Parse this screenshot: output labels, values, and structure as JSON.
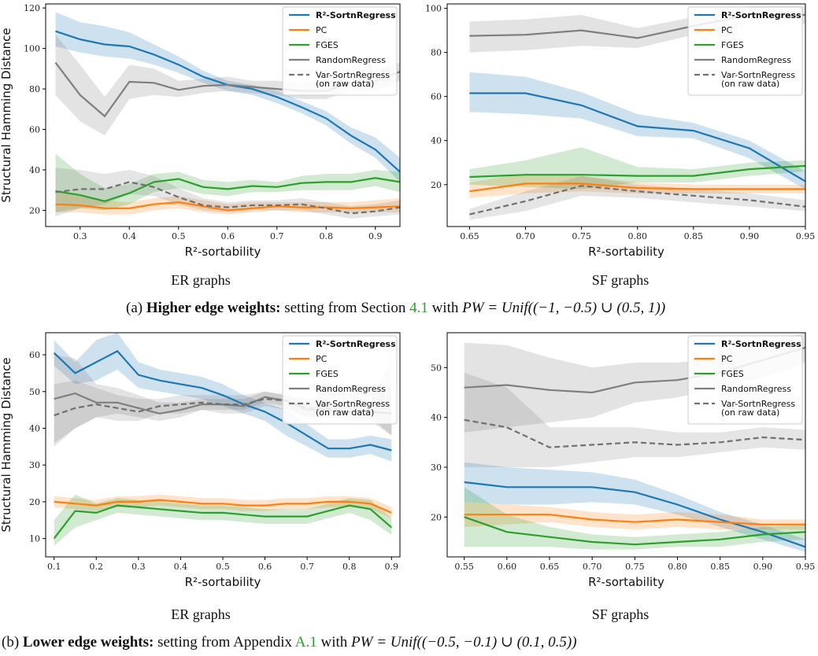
{
  "chart_data": [
    {
      "type": "line",
      "ylabel": "Structural Hamming Distance",
      "xlabel": "R²-sortability",
      "xlim": [
        0.23,
        0.95
      ],
      "ylim": [
        12,
        122
      ],
      "xticks": [
        "0.3",
        "0.4",
        "0.5",
        "0.6",
        "0.7",
        "0.8",
        "0.9"
      ],
      "yticks": [
        "20",
        "40",
        "60",
        "80",
        "100",
        "120"
      ],
      "legend": "top-right",
      "x": [
        0.25,
        0.3,
        0.35,
        0.4,
        0.45,
        0.5,
        0.55,
        0.6,
        0.65,
        0.7,
        0.75,
        0.8,
        0.85,
        0.9,
        0.95
      ],
      "series": [
        {
          "name": "R²-SortnRegress",
          "color": "#1f77b4",
          "values": [
            108.5,
            104.5,
            102,
            101,
            97,
            92,
            86,
            82,
            80,
            76,
            71,
            65.5,
            57,
            50,
            39
          ],
          "lower": [
            101,
            98,
            96,
            95,
            92,
            88,
            83,
            79,
            77,
            73,
            68,
            62,
            53,
            46,
            34
          ],
          "upper": [
            118,
            113,
            111,
            108,
            102,
            96,
            89,
            84,
            82,
            79,
            74,
            69,
            61,
            56,
            46
          ]
        },
        {
          "name": "PC",
          "color": "#ff7f0e",
          "values": [
            23,
            22.5,
            21,
            21,
            23,
            24,
            22,
            20,
            21,
            22,
            21.5,
            21.5,
            21,
            21.5,
            22
          ],
          "lower": [
            19,
            19,
            18,
            18,
            20,
            21,
            19,
            18,
            19,
            20,
            19,
            19,
            19,
            19,
            19
          ],
          "upper": [
            29,
            27,
            25,
            24,
            26,
            27,
            25,
            23,
            24,
            24,
            24,
            24,
            24,
            25,
            26
          ]
        },
        {
          "name": "FGES",
          "color": "#2ca02c",
          "values": [
            29.5,
            27.5,
            24.5,
            28.5,
            34,
            35.5,
            31.5,
            30.5,
            32,
            31.5,
            33.5,
            34,
            34,
            36,
            34
          ],
          "lower": [
            19,
            21,
            20,
            23,
            29,
            31,
            28,
            27,
            29,
            29,
            30,
            30,
            30,
            32,
            29
          ],
          "upper": [
            48,
            38,
            31,
            33,
            38,
            39,
            35,
            34,
            35,
            34,
            37,
            38,
            38,
            40,
            39
          ]
        },
        {
          "name": "RandomRegress",
          "color": "#7f7f7f",
          "values": [
            93,
            77,
            66.5,
            83.5,
            83,
            79.5,
            81.5,
            82,
            81,
            80,
            79,
            79,
            83,
            84,
            88.5
          ],
          "lower": [
            77,
            64,
            57,
            75,
            77,
            76,
            78,
            79,
            78,
            77,
            75,
            75,
            79,
            79,
            84
          ],
          "upper": [
            107,
            92,
            76,
            92,
            90,
            84,
            85,
            86,
            84,
            84,
            83,
            84,
            87,
            89,
            93
          ]
        },
        {
          "name": "Var-SortnRegress",
          "name2": "(on raw data)",
          "color": "#707070",
          "dashed": true,
          "values": [
            29,
            30.5,
            30.5,
            34,
            31.5,
            26.5,
            22.5,
            21.5,
            22.5,
            22.5,
            23,
            21,
            18.5,
            19.5,
            21.5
          ],
          "lower": [
            17,
            21,
            23,
            28,
            27,
            23,
            20,
            19,
            20,
            20,
            20,
            18,
            16,
            17,
            18
          ],
          "upper": [
            41,
            40,
            38,
            40,
            37,
            31,
            26,
            24,
            25,
            25,
            26,
            24,
            22,
            23,
            25
          ]
        }
      ],
      "subtitle": "ER graphs"
    },
    {
      "type": "line",
      "ylabel": "Structural Hamming Distance",
      "xlabel": "R²-sortability",
      "xlim": [
        0.63,
        0.95
      ],
      "ylim": [
        1,
        102
      ],
      "xticks": [
        "0.65",
        "0.70",
        "0.75",
        "0.80",
        "0.85",
        "0.90",
        "0.95"
      ],
      "yticks": [
        "20",
        "40",
        "60",
        "80",
        "100"
      ],
      "legend": "top-right",
      "x": [
        0.65,
        0.7,
        0.75,
        0.8,
        0.85,
        0.9,
        0.95
      ],
      "series": [
        {
          "name": "R²-SortnRegress",
          "color": "#1f77b4",
          "values": [
            61.5,
            61.5,
            56,
            46.5,
            44.5,
            36.5,
            21.5
          ],
          "lower": [
            53,
            52,
            50,
            42,
            41,
            32,
            18
          ],
          "upper": [
            71,
            69,
            62,
            52,
            48,
            40,
            26
          ]
        },
        {
          "name": "PC",
          "color": "#ff7f0e",
          "values": [
            17,
            20.5,
            20.5,
            18.5,
            18,
            18,
            18
          ],
          "lower": [
            14,
            16,
            17,
            16,
            16,
            16,
            16
          ],
          "upper": [
            21,
            25,
            24,
            21,
            20,
            20,
            20
          ]
        },
        {
          "name": "FGES",
          "color": "#2ca02c",
          "values": [
            23.5,
            24.5,
            24.5,
            24,
            24,
            27,
            28.5
          ],
          "lower": [
            20,
            19,
            18,
            21,
            21,
            24,
            26
          ],
          "upper": [
            27,
            31,
            37,
            28,
            27,
            30,
            31
          ]
        },
        {
          "name": "RandomRegress",
          "color": "#7f7f7f",
          "values": [
            87.5,
            88,
            90,
            86.5,
            92,
            97,
            97
          ],
          "lower": [
            80,
            81,
            83,
            82,
            88,
            93,
            93
          ],
          "upper": [
            94,
            95,
            97,
            91,
            96,
            101,
            101
          ]
        },
        {
          "name": "Var-SortnRegress",
          "name2": "(on raw data)",
          "color": "#707070",
          "dashed": true,
          "values": [
            6.5,
            12.5,
            19.5,
            17,
            15,
            13,
            10
          ],
          "lower": [
            4,
            8,
            15,
            14,
            12,
            10,
            8
          ],
          "upper": [
            9,
            17,
            24,
            20,
            18,
            16,
            13
          ]
        }
      ],
      "subtitle": "SF graphs"
    },
    {
      "type": "line",
      "ylabel": "Structural Hamming Distance",
      "xlabel": "R²-sortability",
      "xlim": [
        0.08,
        0.92
      ],
      "ylim": [
        5,
        66
      ],
      "xticks": [
        "0.1",
        "0.2",
        "0.3",
        "0.4",
        "0.5",
        "0.6",
        "0.7",
        "0.8",
        "0.9"
      ],
      "yticks": [
        "10",
        "20",
        "30",
        "40",
        "50",
        "60"
      ],
      "legend": "top-right",
      "x": [
        0.1,
        0.15,
        0.2,
        0.25,
        0.3,
        0.35,
        0.4,
        0.45,
        0.5,
        0.55,
        0.6,
        0.65,
        0.7,
        0.75,
        0.8,
        0.85,
        0.9
      ],
      "series": [
        {
          "name": "R²-SortnRegress",
          "color": "#1f77b4",
          "values": [
            60.5,
            55,
            58,
            61,
            54.5,
            53,
            52,
            51,
            49,
            46.5,
            44.5,
            41.5,
            38,
            34.5,
            34.5,
            35.5,
            34
          ],
          "lower": [
            57,
            52,
            53,
            56,
            51,
            50,
            49,
            48,
            46,
            44,
            42,
            38,
            35,
            32,
            32,
            33,
            31
          ],
          "upper": [
            64,
            58,
            64,
            66,
            58,
            56,
            55,
            54,
            52,
            49,
            47,
            45,
            41,
            37,
            37,
            38,
            37
          ]
        },
        {
          "name": "PC",
          "color": "#ff7f0e",
          "values": [
            20,
            19.5,
            19,
            20,
            20,
            20.5,
            20,
            19.5,
            19.5,
            19,
            19,
            19.5,
            19.5,
            20,
            20,
            19.5,
            17
          ],
          "lower": [
            18.5,
            18,
            17.5,
            18.5,
            18.5,
            19,
            18.5,
            18,
            18,
            17.5,
            17.5,
            18,
            18,
            18.5,
            18.5,
            18,
            15.5
          ],
          "upper": [
            21.5,
            21,
            20.5,
            21.5,
            21.5,
            22,
            21.5,
            21,
            21,
            20.5,
            20.5,
            21,
            21,
            21.5,
            21.5,
            21,
            18.5
          ]
        },
        {
          "name": "FGES",
          "color": "#2ca02c",
          "values": [
            10,
            17.5,
            17,
            19,
            18.5,
            18,
            17.5,
            17,
            17,
            16.5,
            16,
            16,
            16,
            17.5,
            19,
            18,
            13
          ],
          "lower": [
            8,
            13,
            15,
            17,
            16.5,
            16,
            15.5,
            15,
            15,
            14.5,
            14,
            14,
            14,
            15.5,
            17,
            15,
            11
          ],
          "upper": [
            15,
            22,
            19.5,
            21,
            20.5,
            20,
            19.5,
            19,
            19,
            18.5,
            18,
            18,
            18,
            19.5,
            21,
            20.5,
            15.5
          ]
        },
        {
          "name": "RandomRegress",
          "color": "#7f7f7f",
          "values": [
            48,
            49.5,
            47,
            47,
            45.5,
            44,
            45,
            46.5,
            46.5,
            46,
            48.5,
            47.5,
            45,
            45,
            44.5,
            44.5,
            44
          ],
          "lower": [
            35,
            40,
            43,
            44,
            43,
            42,
            43,
            45,
            45,
            45,
            47,
            46,
            43,
            43,
            43,
            43,
            38
          ],
          "upper": [
            60,
            59,
            52,
            51,
            49,
            47,
            47,
            48,
            48,
            48,
            50,
            49,
            47,
            47,
            46,
            47,
            59
          ]
        },
        {
          "name": "Var-SortnRegress",
          "name2": "(on raw data)",
          "color": "#707070",
          "dashed": true,
          "values": [
            43.5,
            45.5,
            46.5,
            45.5,
            44.5,
            46,
            46.5,
            47,
            46.5,
            46.5,
            48,
            47.5,
            45.5,
            45.5,
            44.5,
            44.5,
            44
          ],
          "lower": [
            36,
            40,
            43,
            42,
            42,
            44,
            44,
            45,
            44,
            44,
            46,
            45,
            43,
            43,
            42,
            42,
            38
          ],
          "upper": [
            52,
            53,
            51,
            49,
            48,
            48,
            49,
            49,
            49,
            49,
            50,
            49,
            48,
            48,
            47,
            47,
            51
          ]
        }
      ],
      "subtitle": "ER graphs"
    },
    {
      "type": "line",
      "ylabel": "Structural Hamming Distance",
      "xlabel": "R²-sortability",
      "xlim": [
        0.53,
        0.95
      ],
      "ylim": [
        12,
        57
      ],
      "xticks": [
        "0.55",
        "0.60",
        "0.65",
        "0.70",
        "0.75",
        "0.80",
        "0.85",
        "0.90",
        "0.95"
      ],
      "yticks": [
        "20",
        "30",
        "40",
        "50"
      ],
      "legend": "top-right",
      "x": [
        0.55,
        0.6,
        0.65,
        0.7,
        0.75,
        0.8,
        0.85,
        0.9,
        0.95
      ],
      "series": [
        {
          "name": "R²-SortnRegress",
          "color": "#1f77b4",
          "values": [
            27,
            26,
            26,
            26,
            25,
            22.5,
            19.5,
            17,
            14
          ],
          "lower": [
            23,
            22.5,
            22.5,
            23,
            22.5,
            20.5,
            18,
            15.5,
            13
          ],
          "upper": [
            31,
            30,
            29.5,
            29,
            27.5,
            24.5,
            21,
            18.5,
            15.5
          ]
        },
        {
          "name": "PC",
          "color": "#ff7f0e",
          "values": [
            20.5,
            20.5,
            20.5,
            19.5,
            19,
            19.5,
            19,
            18.5,
            18.5
          ],
          "lower": [
            18,
            18.5,
            19,
            18,
            17.5,
            18,
            17.5,
            17.5,
            17.5
          ],
          "upper": [
            23,
            22.5,
            22,
            21,
            20.5,
            21,
            20.5,
            19.5,
            19.5
          ]
        },
        {
          "name": "FGES",
          "color": "#2ca02c",
          "values": [
            20,
            17,
            16,
            15,
            14.5,
            15,
            15.5,
            16.5,
            17
          ],
          "lower": [
            14,
            14,
            14,
            13.5,
            13.5,
            14,
            14,
            15,
            15.5
          ],
          "upper": [
            26,
            20.5,
            18,
            16.5,
            16,
            16.5,
            17,
            18,
            18.5
          ]
        },
        {
          "name": "RandomRegress",
          "color": "#7f7f7f",
          "values": [
            46,
            46.5,
            45.5,
            45,
            47,
            47.5,
            49,
            51.5,
            54
          ],
          "lower": [
            37,
            38,
            39,
            40,
            43,
            44,
            46,
            48,
            51
          ],
          "upper": [
            55,
            54.5,
            52,
            50,
            51,
            51,
            52,
            55,
            57
          ]
        },
        {
          "name": "Var-SortnRegress",
          "name2": "(on raw data)",
          "color": "#707070",
          "dashed": true,
          "values": [
            39.5,
            38,
            34,
            34.5,
            35,
            34.5,
            35,
            36,
            35.5
          ],
          "lower": [
            30,
            30,
            30,
            31,
            32,
            32,
            33,
            34,
            33.5
          ],
          "upper": [
            49,
            46,
            38,
            38,
            38,
            37,
            37,
            38,
            37.5
          ]
        }
      ],
      "subtitle": "SF graphs"
    }
  ],
  "captions": {
    "a_label": "(a) ",
    "a_bold": "Higher edge weights:",
    "a_text1": " setting from Section ",
    "a_ref": "4.1",
    "a_text2": " with ",
    "a_math": "PW = Unif((−1, −0.5) ∪ (0.5, 1))",
    "b_label": "(b) ",
    "b_bold": "Lower edge weights:",
    "b_text1": " setting from Appendix ",
    "b_ref": "A.1",
    "b_text2": " with ",
    "b_math": "PW = Unif((−0.5, −0.1) ∪ (0.1, 0.5))"
  }
}
